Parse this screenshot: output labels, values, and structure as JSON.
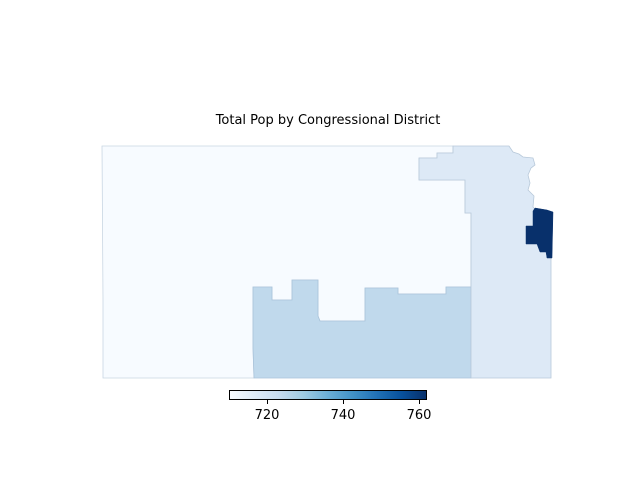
{
  "title": "Total Pop by Congressional District",
  "colorbar": {
    "colormap": "Blues",
    "range": [
      710,
      762
    ],
    "ticks": [
      {
        "value": 720,
        "label": "720"
      },
      {
        "value": 740,
        "label": "740"
      },
      {
        "value": 760,
        "label": "760"
      }
    ],
    "gradient": [
      "#f7fbff",
      "#deebf7",
      "#c6dbef",
      "#9ecae1",
      "#6baed6",
      "#4292c6",
      "#2171b5",
      "#08519c",
      "#08306b"
    ]
  },
  "districts": [
    {
      "id": "district-west",
      "value": 710,
      "color": "#f7fbff"
    },
    {
      "id": "district-south-central",
      "value": 728,
      "color": "#c0d9ec"
    },
    {
      "id": "district-east",
      "value": 719,
      "color": "#dde9f6"
    },
    {
      "id": "district-urban",
      "value": 762,
      "color": "#08306b"
    }
  ]
}
